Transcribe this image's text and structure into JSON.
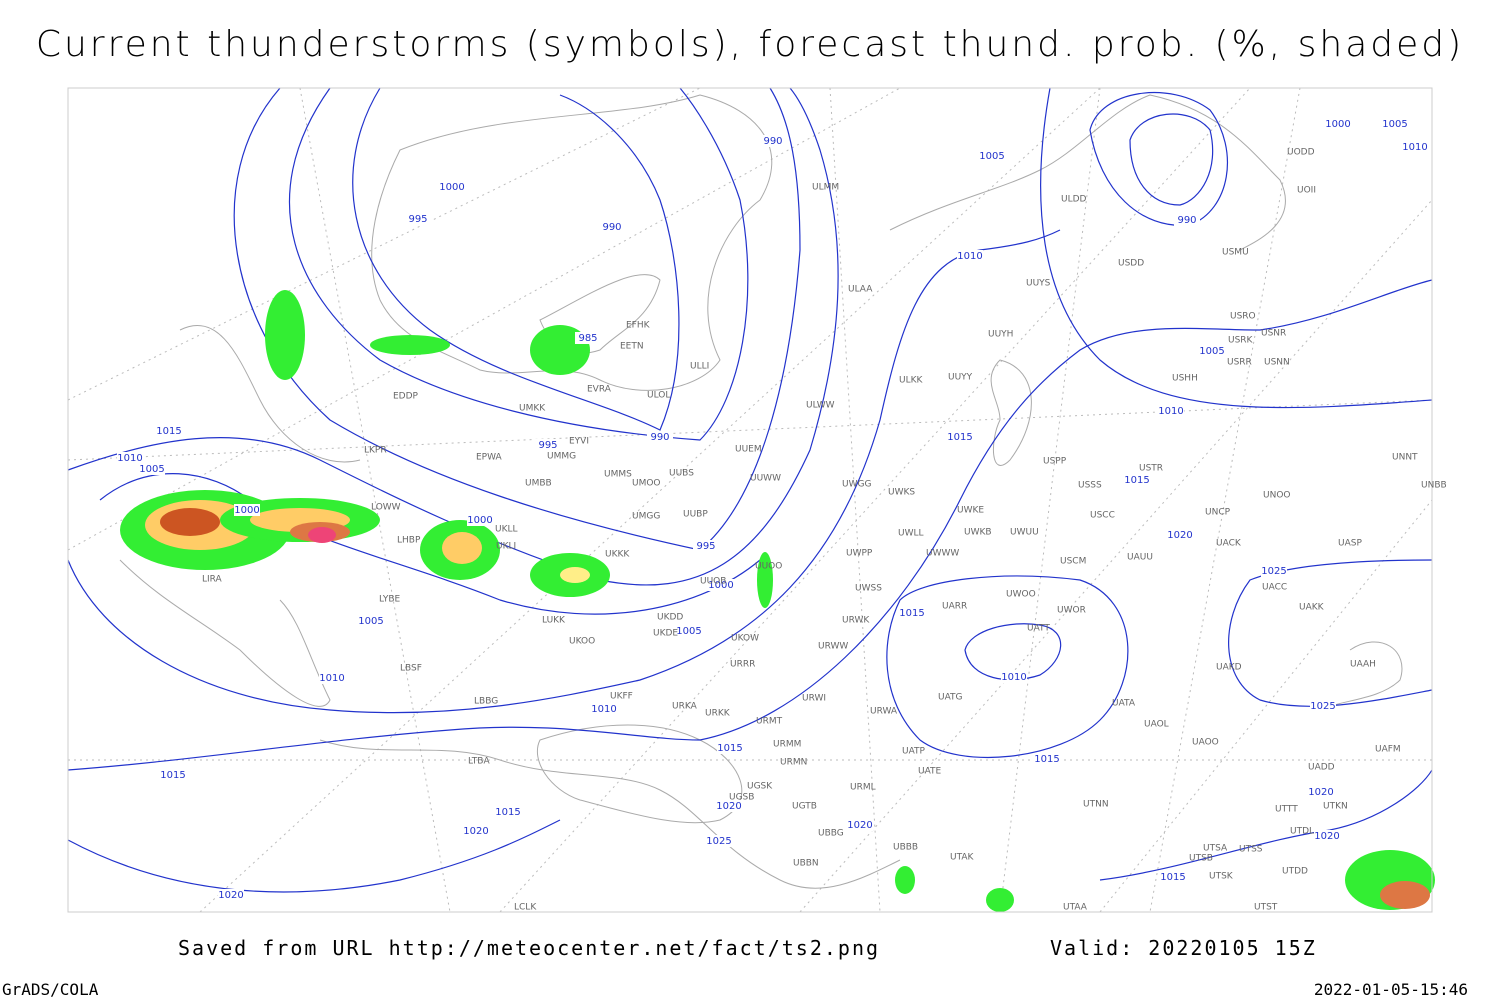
{
  "title": "Current thunderstorms (symbols), forecast thund. prob. (%, shaded)",
  "isobar_labels": [
    1000,
    995,
    990,
    990,
    1005,
    990,
    1000,
    1005,
    1010,
    1010,
    985,
    1005,
    1010,
    1015,
    1010,
    1005,
    1000,
    995,
    990,
    1015,
    1015,
    1000,
    1020,
    995,
    1000,
    1025,
    1005,
    1005,
    1015,
    1010,
    1010,
    1025,
    1010,
    1015,
    1015,
    1015,
    1020,
    1020,
    1015,
    1020,
    1020,
    1025,
    1020,
    1015,
    1020
  ],
  "stations": [
    "ULMM",
    "ULDD",
    "UODD",
    "UOII",
    "USDD",
    "USMU",
    "ULAA",
    "UUYS",
    "USRO",
    "USNR",
    "USRK",
    "EFHK",
    "EETN",
    "UUYH",
    "USRR",
    "USNN",
    "ULLI",
    "ULKK",
    "UUYY",
    "USHH",
    "EVRA",
    "ULOL",
    "EDDP",
    "UMKK",
    "ULWW",
    "EYVI",
    "UMMG",
    "LKPR",
    "UUEM",
    "EPWA",
    "USPP",
    "USTR",
    "UNNT",
    "UMMS",
    "UMOO",
    "UUBS",
    "UUWW",
    "USSS",
    "UMBB",
    "UWGG",
    "UNOO",
    "UNBB",
    "UWKS",
    "LOWW",
    "UKLL",
    "UMGG",
    "UUBP",
    "UWKE",
    "USCC",
    "UNCP",
    "UKKK",
    "UKLI",
    "UWLL",
    "UWKB",
    "UWUU",
    "UACK",
    "UASP",
    "LHBP",
    "UWPP",
    "UWWW",
    "USCM",
    "UAUU",
    "LIRA",
    "UUOO",
    "UUOB",
    "UWSS",
    "UACC",
    "LYBE",
    "UKDD",
    "UAKK",
    "UARR",
    "UWOO",
    "UWOR",
    "LUKK",
    "URWK",
    "UKDE",
    "UATT",
    "UKOO",
    "UKOW",
    "URWW",
    "URRR",
    "LBSF",
    "UAKD",
    "UAAH",
    "UKFF",
    "URWI",
    "UATG",
    "LBBG",
    "URKA",
    "URKK",
    "URWA",
    "UATA",
    "URMT",
    "UAOL",
    "UAOO",
    "URMM",
    "UATP",
    "LTBA",
    "URMN",
    "UATE",
    "UADD",
    "UAFM",
    "URML",
    "UGSK",
    "UGSB",
    "UTNN",
    "UTKN",
    "UGTB",
    "UTTT",
    "UBBG",
    "UTDL",
    "UTSA",
    "UTSS",
    "UBBB",
    "UTAK",
    "UTSB",
    "UBBN",
    "UTDD",
    "UTSK",
    "UTAA",
    "UTST",
    "LCLK"
  ],
  "footer": {
    "saved": "Saved from URL http://meteocenter.net/fact/ts2.png",
    "valid": "Valid: 20220105 15Z",
    "software": "GrADS/COLA",
    "timestamp": "2022-01-05-15:46"
  }
}
